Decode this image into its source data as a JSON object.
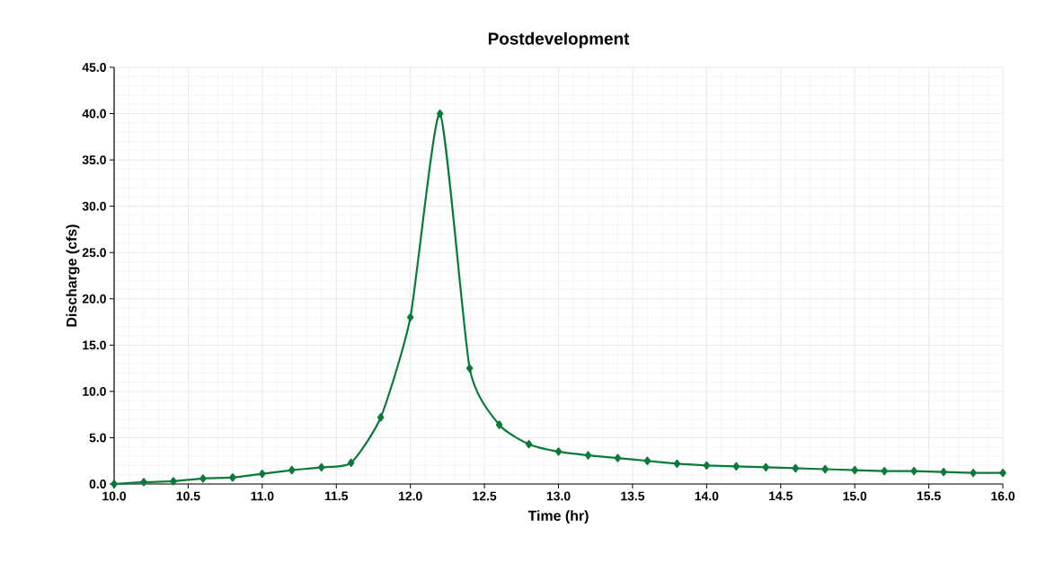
{
  "chart_data": {
    "type": "line",
    "title": "Postdevelopment",
    "xlabel": "Time (hr)",
    "ylabel": "Discharge (cfs)",
    "x": [
      10.0,
      10.2,
      10.4,
      10.6,
      10.8,
      11.0,
      11.2,
      11.4,
      11.6,
      11.8,
      12.0,
      12.2,
      12.4,
      12.6,
      12.8,
      13.0,
      13.2,
      13.4,
      13.6,
      13.8,
      14.0,
      14.2,
      14.4,
      14.6,
      14.8,
      15.0,
      15.2,
      15.4,
      15.6,
      15.8,
      16.0
    ],
    "series": [
      {
        "color": "#0a7a3a",
        "values": [
          0.0,
          0.2,
          0.3,
          0.6,
          0.7,
          1.1,
          1.5,
          1.8,
          2.3,
          7.2,
          18.0,
          40.0,
          12.5,
          6.4,
          4.3,
          3.5,
          3.1,
          2.8,
          2.5,
          2.2,
          2.0,
          1.9,
          1.8,
          1.7,
          1.6,
          1.5,
          1.4,
          1.4,
          1.3,
          1.2,
          1.2
        ]
      }
    ],
    "xlim": [
      10.0,
      16.0
    ],
    "ylim": [
      0.0,
      45.0
    ],
    "xticks": [
      {
        "value": 10.0,
        "label": "10.0"
      },
      {
        "value": 10.5,
        "label": "10.5"
      },
      {
        "value": 11.0,
        "label": "11.0"
      },
      {
        "value": 11.5,
        "label": "11.5"
      },
      {
        "value": 12.0,
        "label": "12.0"
      },
      {
        "value": 12.5,
        "label": "12.5"
      },
      {
        "value": 13.0,
        "label": "13.0"
      },
      {
        "value": 13.5,
        "label": "13.5"
      },
      {
        "value": 14.0,
        "label": "14.0"
      },
      {
        "value": 14.5,
        "label": "14.5"
      },
      {
        "value": 15.0,
        "label": "15.0"
      },
      {
        "value": 15.5,
        "label": "15.5"
      },
      {
        "value": 16.0,
        "label": "16.0"
      }
    ],
    "yticks": [
      {
        "value": 0.0,
        "label": "0.0"
      },
      {
        "value": 5.0,
        "label": "5.0"
      },
      {
        "value": 10.0,
        "label": "10.0"
      },
      {
        "value": 15.0,
        "label": "15.0"
      },
      {
        "value": 20.0,
        "label": "20.0"
      },
      {
        "value": 25.0,
        "label": "25.0"
      },
      {
        "value": 30.0,
        "label": "30.0"
      },
      {
        "value": 35.0,
        "label": "35.0"
      },
      {
        "value": 40.0,
        "label": "40.0"
      },
      {
        "value": 45.0,
        "label": "45.0"
      }
    ],
    "grid": true,
    "marker": "diamond",
    "line_style": "solid"
  }
}
